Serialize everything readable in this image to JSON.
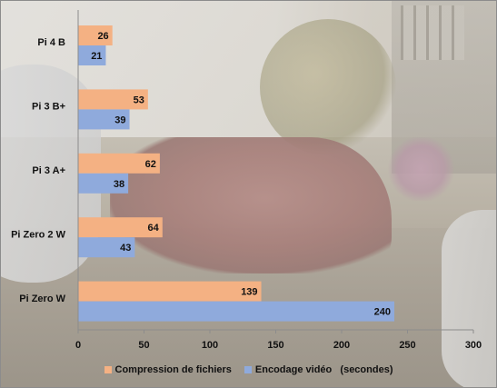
{
  "chart_data": {
    "type": "bar",
    "orientation": "horizontal",
    "categories": [
      "Pi 4 B",
      "Pi 3 B+",
      "Pi 3 A+",
      "Pi Zero 2 W",
      "Pi Zero W"
    ],
    "series": [
      {
        "name": "Compression de fichiers",
        "color": "#f4b183",
        "values": [
          26,
          53,
          62,
          64,
          139
        ]
      },
      {
        "name": "Encodage vidéo   (secondes)",
        "color": "#8faadc",
        "values": [
          21,
          39,
          38,
          43,
          240
        ]
      }
    ],
    "xlim": [
      0,
      300
    ],
    "xticks": [
      "0",
      "50",
      "100",
      "150",
      "200",
      "250",
      "300"
    ],
    "grid": false,
    "legend_position": "bottom",
    "data_labels": true
  }
}
